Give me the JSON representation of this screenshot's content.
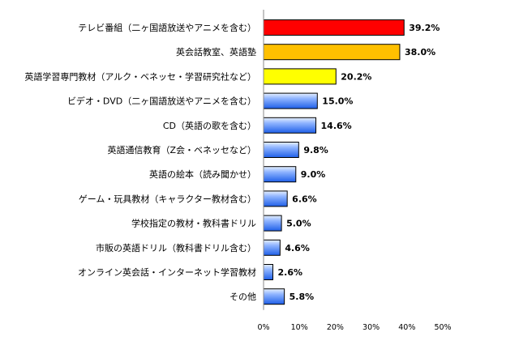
{
  "chart_data": {
    "type": "bar",
    "orientation": "horizontal",
    "categories": [
      "テレビ番組（二ヶ国語放送やアニメを含む）",
      "英会話教室、英語塾",
      "英語学習専門教材（アルク・ベネッセ・学習研究社など）",
      "ビデオ・DVD（二ヶ国語放送やアニメを含む）",
      "CD（英語の歌を含む）",
      "英語通信教育（Z会・ベネッセなど）",
      "英語の絵本（読み聞かせ）",
      "ゲーム・玩具教材（キャラクター教材含む）",
      "学校指定の教材・教科書ドリル",
      "市販の英語ドリル（教科書ドリル含む）",
      "オンライン英会話・インターネット学習教材",
      "その他"
    ],
    "values": [
      39.2,
      38.0,
      20.2,
      15.0,
      14.6,
      9.8,
      9.0,
      6.6,
      5.0,
      4.6,
      2.6,
      5.8
    ],
    "value_labels": [
      "39.2%",
      "38.0%",
      "20.2%",
      "15.0%",
      "14.6%",
      "9.8%",
      "9.0%",
      "6.6%",
      "5.0%",
      "4.6%",
      "2.6%",
      "5.8%"
    ],
    "bar_colors": [
      "#ff0000",
      "#ffc000",
      "#ffff00",
      "blue-gradient",
      "blue-gradient",
      "blue-gradient",
      "blue-gradient",
      "blue-gradient",
      "blue-gradient",
      "blue-gradient",
      "blue-gradient",
      "blue-gradient"
    ],
    "xlim": [
      0,
      50
    ],
    "xticks": [
      "0%",
      "10%",
      "20%",
      "30%",
      "40%",
      "50%"
    ],
    "title": "",
    "xlabel": "",
    "ylabel": "",
    "grid": false,
    "legend": "none"
  }
}
